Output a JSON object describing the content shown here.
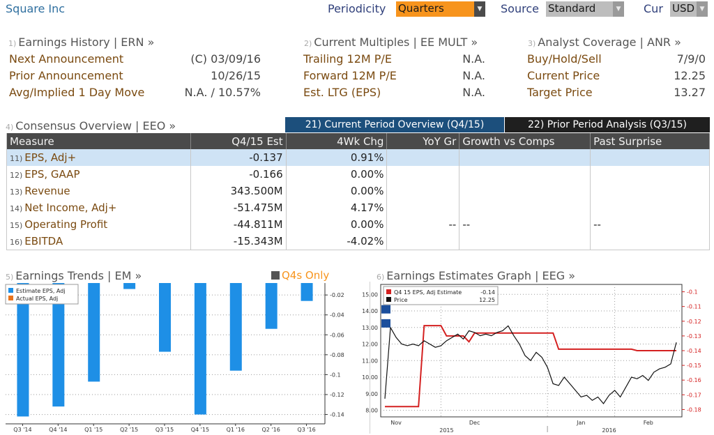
{
  "header": {
    "company": "Square Inc",
    "periodicity_label": "Periodicity",
    "periodicity_value": "Quarters",
    "source_label": "Source",
    "source_value": "Standard",
    "cur_label": "Cur",
    "cur_value": "USD"
  },
  "earnings_history": {
    "num": "1)",
    "title": "Earnings History | ERN »",
    "rows": [
      {
        "label": "Next Announcement",
        "value": "(C)  03/09/16"
      },
      {
        "label": "Prior Announcement",
        "value": "10/26/15"
      },
      {
        "label": "Avg/Implied 1 Day Move",
        "value": "N.A. / 10.57%"
      }
    ]
  },
  "current_multiples": {
    "num": "2)",
    "title": "Current Multiples | EE MULT »",
    "rows": [
      {
        "label": "Trailing 12M P/E",
        "value": "N.A."
      },
      {
        "label": "Forward 12M P/E",
        "value": "N.A."
      },
      {
        "label": "Est. LTG (EPS)",
        "value": "N.A."
      }
    ]
  },
  "analyst_coverage": {
    "num": "3)",
    "title": "Analyst Coverage | ANR »",
    "rows": [
      {
        "label": "Buy/Hold/Sell",
        "value": "7/9/0"
      },
      {
        "label": "Current Price",
        "value": "12.25"
      },
      {
        "label": "Target Price",
        "value": "13.27"
      }
    ]
  },
  "consensus": {
    "num": "4)",
    "title": "Consensus Overview | EEO »",
    "tab_current": "21) Current Period Overview (Q4/15)",
    "tab_prior": "22) Prior Period Analysis (Q3/15)",
    "columns": [
      "Measure",
      "Q4/15 Est",
      "4Wk Chg",
      "YoY Gr",
      "Growth vs Comps",
      "Past Surprise"
    ],
    "rows": [
      {
        "num": "11)",
        "measure": "EPS, Adj+",
        "est": "-0.137",
        "chg": "0.91%",
        "chg_sign": "pos",
        "yoy": "",
        "comps": "",
        "surprise": ""
      },
      {
        "num": "12)",
        "measure": "EPS, GAAP",
        "est": "-0.166",
        "chg": "0.00%",
        "chg_sign": "zero",
        "yoy": "",
        "comps": "",
        "surprise": ""
      },
      {
        "num": "13)",
        "measure": "Revenue",
        "est": "343.500M",
        "chg": "0.00%",
        "chg_sign": "zero",
        "yoy": "",
        "comps": "",
        "surprise": ""
      },
      {
        "num": "14)",
        "measure": "Net Income, Adj+",
        "est": "-51.475M",
        "chg": "4.17%",
        "chg_sign": "pos",
        "yoy": "",
        "comps": "",
        "surprise": ""
      },
      {
        "num": "15)",
        "measure": "Operating Profit",
        "est": "-44.811M",
        "chg": "0.00%",
        "chg_sign": "zero",
        "yoy": "--",
        "comps": "--",
        "surprise": "--"
      },
      {
        "num": "16)",
        "measure": "EBITDA",
        "est": "-15.343M",
        "chg": "-4.02%",
        "chg_sign": "neg",
        "yoy": "",
        "comps": "",
        "surprise": ""
      }
    ]
  },
  "earnings_trends": {
    "num": "5)",
    "title": "Earnings Trends | EM »",
    "q4_only_label": "Q4s Only"
  },
  "earnings_graph": {
    "num": "6)",
    "title": "Earnings Estimates Graph | EEG »"
  },
  "chart_data": [
    {
      "type": "bar",
      "legend": [
        "Estimate EPS, Adj",
        "Actual EPS, Adj"
      ],
      "legend_placement": "top-left",
      "colors": {
        "estimate": "#1e8fe6",
        "actual": "#e8731d"
      },
      "categories": [
        "Q3 '14",
        "Q4 '14",
        "Q1 '15",
        "Q2 '15",
        "Q3 '15",
        "Q4 '15",
        "Q1 '16",
        "Q2 '16",
        "Q3 '16"
      ],
      "series": [
        {
          "name": "Estimate EPS, Adj",
          "values": [
            -0.142,
            -0.132,
            -0.107,
            -0.014,
            -0.077,
            -0.14,
            -0.096,
            -0.054,
            -0.026
          ]
        }
      ],
      "yticks": [
        -0.02,
        -0.04,
        -0.06,
        -0.08,
        -0.1,
        -0.12,
        -0.14
      ],
      "ylim": [
        -0.148,
        -0.008
      ],
      "y_axis_side": "right",
      "grid": true
    },
    {
      "type": "line",
      "legend": [
        "Q4 15 EPS, Adj Estimate",
        "Price"
      ],
      "legend_values": [
        "-0.14",
        "12.25"
      ],
      "legend_placement": "top-left",
      "colors": {
        "estimate": "#d42020",
        "price": "#111111"
      },
      "x_labels": [
        "Nov",
        "Dec",
        "Jan",
        "Feb"
      ],
      "x_sublabels": [
        "2015",
        "2016"
      ],
      "y_left_ticks": [
        8.0,
        9.0,
        10.0,
        11.0,
        12.0,
        13.0,
        14.0,
        15.0
      ],
      "y_left_lim": [
        7.6,
        15.6
      ],
      "y_right_ticks": [
        -0.1,
        -0.11,
        -0.12,
        -0.13,
        -0.14,
        -0.15,
        -0.16,
        -0.17,
        -0.18
      ],
      "y_right_lim": [
        -0.185,
        -0.095
      ],
      "grid": true,
      "price": [
        [
          0,
          8.7
        ],
        [
          1,
          13.0
        ],
        [
          2,
          12.4
        ],
        [
          3,
          12.0
        ],
        [
          4,
          11.9
        ],
        [
          5,
          12.0
        ],
        [
          6,
          11.9
        ],
        [
          7,
          12.2
        ],
        [
          8,
          12.0
        ],
        [
          9,
          11.8
        ],
        [
          10,
          11.9
        ],
        [
          11,
          12.2
        ],
        [
          12,
          12.4
        ],
        [
          13,
          12.6
        ],
        [
          14,
          12.3
        ],
        [
          15,
          12.8
        ],
        [
          16,
          12.7
        ],
        [
          17,
          12.5
        ],
        [
          18,
          12.6
        ],
        [
          19,
          12.5
        ],
        [
          20,
          12.7
        ],
        [
          21,
          12.8
        ],
        [
          22,
          13.1
        ],
        [
          23,
          12.5
        ],
        [
          24,
          12.0
        ],
        [
          25,
          11.3
        ],
        [
          26,
          11.0
        ],
        [
          27,
          11.5
        ],
        [
          28,
          11.2
        ],
        [
          29,
          10.6
        ],
        [
          30,
          9.6
        ],
        [
          31,
          9.5
        ],
        [
          32,
          10.0
        ],
        [
          33,
          9.6
        ],
        [
          34,
          9.2
        ],
        [
          35,
          8.8
        ],
        [
          36,
          8.9
        ],
        [
          37,
          8.6
        ],
        [
          38,
          8.8
        ],
        [
          39,
          8.4
        ],
        [
          40,
          8.9
        ],
        [
          41,
          9.2
        ],
        [
          42,
          8.8
        ],
        [
          43,
          9.4
        ],
        [
          44,
          10.0
        ],
        [
          45,
          9.9
        ],
        [
          46,
          10.1
        ],
        [
          47,
          9.8
        ],
        [
          48,
          10.3
        ],
        [
          49,
          10.5
        ],
        [
          50,
          10.6
        ],
        [
          51,
          10.8
        ],
        [
          52,
          12.1
        ]
      ],
      "estimate": [
        [
          0,
          -0.178
        ],
        [
          6,
          -0.178
        ],
        [
          7,
          -0.123
        ],
        [
          10,
          -0.123
        ],
        [
          11,
          -0.13
        ],
        [
          14,
          -0.13
        ],
        [
          15,
          -0.134
        ],
        [
          16,
          -0.128
        ],
        [
          30,
          -0.128
        ],
        [
          31,
          -0.139
        ],
        [
          44,
          -0.139
        ],
        [
          45,
          -0.14
        ],
        [
          52,
          -0.14
        ]
      ]
    }
  ]
}
